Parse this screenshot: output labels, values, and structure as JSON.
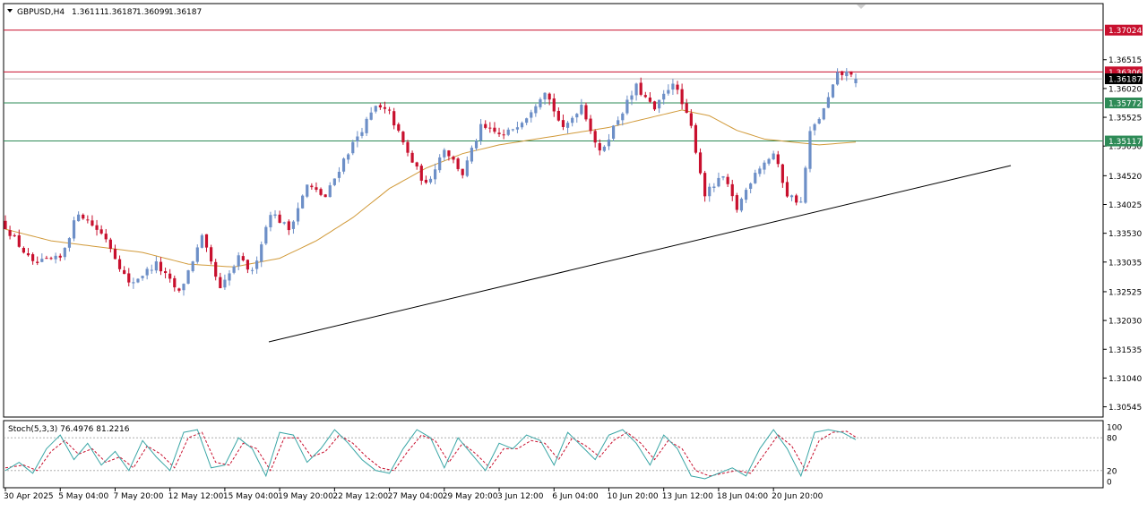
{
  "header": {
    "symbol": "GBPUSD,H4",
    "open": "1.36111",
    "high": "1.36187",
    "low": "1.36099",
    "close": "1.36187"
  },
  "stoch_label": "Stoch(5,3,3) 76.4976 81.2216",
  "colors": {
    "bull": "#6d8fc7",
    "bear": "#c8102e",
    "ma": "#d19a3a",
    "trendline": "#000000",
    "level_red": "#c8102e",
    "level_green": "#2e8b57",
    "stoch_main": "#3aa6a6",
    "stoch_signal": "#c8102e"
  },
  "chart_data": [
    {
      "type": "candlestick",
      "title": "",
      "ylim": [
        1.304,
        1.3745
      ],
      "price_ticks": [
        "1.36515",
        "1.36020",
        "1.35525",
        "1.35030",
        "1.34520",
        "1.34025",
        "1.33530",
        "1.33035",
        "1.32525",
        "1.32030",
        "1.31535",
        "1.31040",
        "1.30545"
      ],
      "price_tick_values": [
        1.36515,
        1.3602,
        1.35525,
        1.3503,
        1.3452,
        1.34025,
        1.3353,
        1.33035,
        1.32525,
        1.3203,
        1.31535,
        1.3104,
        1.30545
      ],
      "time_ticks": [
        "30 Apr 2025",
        "5 May 04:00",
        "7 May 20:00",
        "12 May 12:00",
        "15 May 04:00",
        "19 May 20:00",
        "22 May 12:00",
        "27 May 04:00",
        "29 May 20:00",
        "3 Jun 12:00",
        "6 Jun 04:00",
        "10 Jun 20:00",
        "13 Jun 12:00",
        "18 Jun 04:00",
        "20 Jun 20:00"
      ],
      "time_tick_index": [
        0,
        12,
        24,
        36,
        48,
        60,
        72,
        84,
        96,
        108,
        120,
        132,
        144,
        156,
        168
      ],
      "key_points": [
        {
          "i": 0,
          "v": 1.3365
        },
        {
          "i": 6,
          "v": 1.33
        },
        {
          "i": 12,
          "v": 1.331
        },
        {
          "i": 16,
          "v": 1.339
        },
        {
          "i": 22,
          "v": 1.3345
        },
        {
          "i": 27,
          "v": 1.3265
        },
        {
          "i": 33,
          "v": 1.33
        },
        {
          "i": 38,
          "v": 1.325
        },
        {
          "i": 43,
          "v": 1.3345
        },
        {
          "i": 47,
          "v": 1.3255
        },
        {
          "i": 51,
          "v": 1.331
        },
        {
          "i": 54,
          "v": 1.3285
        },
        {
          "i": 58,
          "v": 1.339
        },
        {
          "i": 62,
          "v": 1.336
        },
        {
          "i": 66,
          "v": 1.3435
        },
        {
          "i": 70,
          "v": 1.3415
        },
        {
          "i": 74,
          "v": 1.348
        },
        {
          "i": 77,
          "v": 1.352
        },
        {
          "i": 81,
          "v": 1.357
        },
        {
          "i": 84,
          "v": 1.356
        },
        {
          "i": 88,
          "v": 1.349
        },
        {
          "i": 92,
          "v": 1.3435
        },
        {
          "i": 96,
          "v": 1.35
        },
        {
          "i": 100,
          "v": 1.3455
        },
        {
          "i": 104,
          "v": 1.3535
        },
        {
          "i": 109,
          "v": 1.352
        },
        {
          "i": 114,
          "v": 1.3555
        },
        {
          "i": 118,
          "v": 1.36
        },
        {
          "i": 122,
          "v": 1.353
        },
        {
          "i": 126,
          "v": 1.3575
        },
        {
          "i": 130,
          "v": 1.349
        },
        {
          "i": 134,
          "v": 1.355
        },
        {
          "i": 138,
          "v": 1.3605
        },
        {
          "i": 142,
          "v": 1.3565
        },
        {
          "i": 146,
          "v": 1.3615
        },
        {
          "i": 150,
          "v": 1.3535
        },
        {
          "i": 153,
          "v": 1.342
        },
        {
          "i": 157,
          "v": 1.345
        },
        {
          "i": 160,
          "v": 1.3395
        },
        {
          "i": 164,
          "v": 1.346
        },
        {
          "i": 168,
          "v": 1.349
        },
        {
          "i": 171,
          "v": 1.342
        },
        {
          "i": 174,
          "v": 1.3405
        },
        {
          "i": 176,
          "v": 1.3525
        },
        {
          "i": 179,
          "v": 1.3565
        },
        {
          "i": 182,
          "v": 1.3625
        },
        {
          "i": 185,
          "v": 1.363
        },
        {
          "i": 186,
          "v": 1.36187
        }
      ],
      "candle_count": 187,
      "ma_points": [
        {
          "i": 0,
          "v": 1.336
        },
        {
          "i": 10,
          "v": 1.334
        },
        {
          "i": 20,
          "v": 1.333
        },
        {
          "i": 30,
          "v": 1.332
        },
        {
          "i": 40,
          "v": 1.33
        },
        {
          "i": 50,
          "v": 1.3295
        },
        {
          "i": 60,
          "v": 1.331
        },
        {
          "i": 68,
          "v": 1.334
        },
        {
          "i": 76,
          "v": 1.338
        },
        {
          "i": 84,
          "v": 1.343
        },
        {
          "i": 92,
          "v": 1.3465
        },
        {
          "i": 100,
          "v": 1.349
        },
        {
          "i": 108,
          "v": 1.3505
        },
        {
          "i": 116,
          "v": 1.3515
        },
        {
          "i": 124,
          "v": 1.3525
        },
        {
          "i": 132,
          "v": 1.3535
        },
        {
          "i": 140,
          "v": 1.355
        },
        {
          "i": 148,
          "v": 1.3565
        },
        {
          "i": 154,
          "v": 1.3555
        },
        {
          "i": 160,
          "v": 1.353
        },
        {
          "i": 166,
          "v": 1.3515
        },
        {
          "i": 172,
          "v": 1.351
        },
        {
          "i": 178,
          "v": 1.3505
        },
        {
          "i": 186,
          "v": 1.351
        }
      ],
      "trendline": {
        "x1": 300,
        "y1": 382,
        "x2": 1128,
        "y2": 185
      },
      "levels": [
        {
          "label": "1.37024",
          "value": 1.37024,
          "color": "level_red",
          "fill": "#c8102e",
          "text": "#ffffff"
        },
        {
          "label": "1.36306",
          "value": 1.36306,
          "color": "level_red",
          "fill": "#c8102e",
          "text": "#ffffff"
        },
        {
          "label": "1.36187",
          "value": 1.36187,
          "color": "current",
          "fill": "#000000",
          "text": "#ffffff"
        },
        {
          "label": "1.35772",
          "value": 1.35772,
          "color": "level_green",
          "fill": "#2e8b57",
          "text": "#ffffff"
        },
        {
          "label": "1.35117",
          "value": 1.35117,
          "color": "level_green",
          "fill": "#2e8b57",
          "text": "#ffffff"
        }
      ]
    },
    {
      "type": "line",
      "title": "Stoch(5,3,3) 76.4976 81.2216",
      "ylim": [
        0,
        100
      ],
      "ticks": [
        "100",
        "80",
        "20",
        "0"
      ],
      "tick_values": [
        100,
        80,
        20,
        0
      ],
      "levels": [
        80,
        20
      ],
      "main_points": [
        {
          "i": 0,
          "v": 20
        },
        {
          "i": 3,
          "v": 35
        },
        {
          "i": 6,
          "v": 15
        },
        {
          "i": 9,
          "v": 60
        },
        {
          "i": 12,
          "v": 85
        },
        {
          "i": 15,
          "v": 40
        },
        {
          "i": 18,
          "v": 70
        },
        {
          "i": 21,
          "v": 30
        },
        {
          "i": 24,
          "v": 55
        },
        {
          "i": 27,
          "v": 20
        },
        {
          "i": 30,
          "v": 75
        },
        {
          "i": 33,
          "v": 45
        },
        {
          "i": 36,
          "v": 20
        },
        {
          "i": 39,
          "v": 90
        },
        {
          "i": 42,
          "v": 95
        },
        {
          "i": 45,
          "v": 25
        },
        {
          "i": 48,
          "v": 30
        },
        {
          "i": 51,
          "v": 80
        },
        {
          "i": 54,
          "v": 60
        },
        {
          "i": 57,
          "v": 10
        },
        {
          "i": 60,
          "v": 90
        },
        {
          "i": 63,
          "v": 85
        },
        {
          "i": 66,
          "v": 35
        },
        {
          "i": 69,
          "v": 60
        },
        {
          "i": 72,
          "v": 95
        },
        {
          "i": 75,
          "v": 70
        },
        {
          "i": 78,
          "v": 40
        },
        {
          "i": 81,
          "v": 20
        },
        {
          "i": 84,
          "v": 15
        },
        {
          "i": 87,
          "v": 60
        },
        {
          "i": 90,
          "v": 95
        },
        {
          "i": 93,
          "v": 80
        },
        {
          "i": 96,
          "v": 25
        },
        {
          "i": 99,
          "v": 80
        },
        {
          "i": 102,
          "v": 50
        },
        {
          "i": 105,
          "v": 20
        },
        {
          "i": 108,
          "v": 70
        },
        {
          "i": 111,
          "v": 60
        },
        {
          "i": 114,
          "v": 85
        },
        {
          "i": 117,
          "v": 75
        },
        {
          "i": 120,
          "v": 30
        },
        {
          "i": 123,
          "v": 90
        },
        {
          "i": 126,
          "v": 65
        },
        {
          "i": 129,
          "v": 40
        },
        {
          "i": 132,
          "v": 85
        },
        {
          "i": 135,
          "v": 95
        },
        {
          "i": 138,
          "v": 70
        },
        {
          "i": 141,
          "v": 30
        },
        {
          "i": 144,
          "v": 85
        },
        {
          "i": 147,
          "v": 60
        },
        {
          "i": 150,
          "v": 10
        },
        {
          "i": 153,
          "v": 5
        },
        {
          "i": 156,
          "v": 15
        },
        {
          "i": 159,
          "v": 25
        },
        {
          "i": 162,
          "v": 10
        },
        {
          "i": 165,
          "v": 60
        },
        {
          "i": 168,
          "v": 95
        },
        {
          "i": 171,
          "v": 60
        },
        {
          "i": 174,
          "v": 10
        },
        {
          "i": 177,
          "v": 90
        },
        {
          "i": 180,
          "v": 95
        },
        {
          "i": 183,
          "v": 90
        },
        {
          "i": 186,
          "v": 76.4976
        }
      ],
      "signal_points": [
        {
          "i": 0,
          "v": 25
        },
        {
          "i": 4,
          "v": 30
        },
        {
          "i": 7,
          "v": 20
        },
        {
          "i": 10,
          "v": 55
        },
        {
          "i": 13,
          "v": 75
        },
        {
          "i": 16,
          "v": 50
        },
        {
          "i": 19,
          "v": 60
        },
        {
          "i": 22,
          "v": 35
        },
        {
          "i": 25,
          "v": 45
        },
        {
          "i": 28,
          "v": 25
        },
        {
          "i": 31,
          "v": 65
        },
        {
          "i": 34,
          "v": 50
        },
        {
          "i": 37,
          "v": 25
        },
        {
          "i": 40,
          "v": 80
        },
        {
          "i": 43,
          "v": 90
        },
        {
          "i": 46,
          "v": 35
        },
        {
          "i": 49,
          "v": 30
        },
        {
          "i": 52,
          "v": 70
        },
        {
          "i": 55,
          "v": 60
        },
        {
          "i": 58,
          "v": 20
        },
        {
          "i": 61,
          "v": 80
        },
        {
          "i": 64,
          "v": 80
        },
        {
          "i": 67,
          "v": 45
        },
        {
          "i": 70,
          "v": 55
        },
        {
          "i": 73,
          "v": 85
        },
        {
          "i": 76,
          "v": 70
        },
        {
          "i": 79,
          "v": 45
        },
        {
          "i": 82,
          "v": 25
        },
        {
          "i": 85,
          "v": 20
        },
        {
          "i": 88,
          "v": 55
        },
        {
          "i": 91,
          "v": 85
        },
        {
          "i": 94,
          "v": 75
        },
        {
          "i": 97,
          "v": 35
        },
        {
          "i": 100,
          "v": 70
        },
        {
          "i": 103,
          "v": 50
        },
        {
          "i": 106,
          "v": 25
        },
        {
          "i": 109,
          "v": 60
        },
        {
          "i": 112,
          "v": 60
        },
        {
          "i": 115,
          "v": 75
        },
        {
          "i": 118,
          "v": 70
        },
        {
          "i": 121,
          "v": 40
        },
        {
          "i": 124,
          "v": 80
        },
        {
          "i": 127,
          "v": 65
        },
        {
          "i": 130,
          "v": 45
        },
        {
          "i": 133,
          "v": 75
        },
        {
          "i": 136,
          "v": 90
        },
        {
          "i": 139,
          "v": 70
        },
        {
          "i": 142,
          "v": 40
        },
        {
          "i": 145,
          "v": 75
        },
        {
          "i": 148,
          "v": 60
        },
        {
          "i": 151,
          "v": 20
        },
        {
          "i": 154,
          "v": 10
        },
        {
          "i": 157,
          "v": 15
        },
        {
          "i": 160,
          "v": 20
        },
        {
          "i": 163,
          "v": 15
        },
        {
          "i": 166,
          "v": 50
        },
        {
          "i": 169,
          "v": 85
        },
        {
          "i": 172,
          "v": 65
        },
        {
          "i": 175,
          "v": 20
        },
        {
          "i": 178,
          "v": 75
        },
        {
          "i": 181,
          "v": 90
        },
        {
          "i": 184,
          "v": 92
        },
        {
          "i": 186,
          "v": 81.2216
        }
      ]
    }
  ]
}
